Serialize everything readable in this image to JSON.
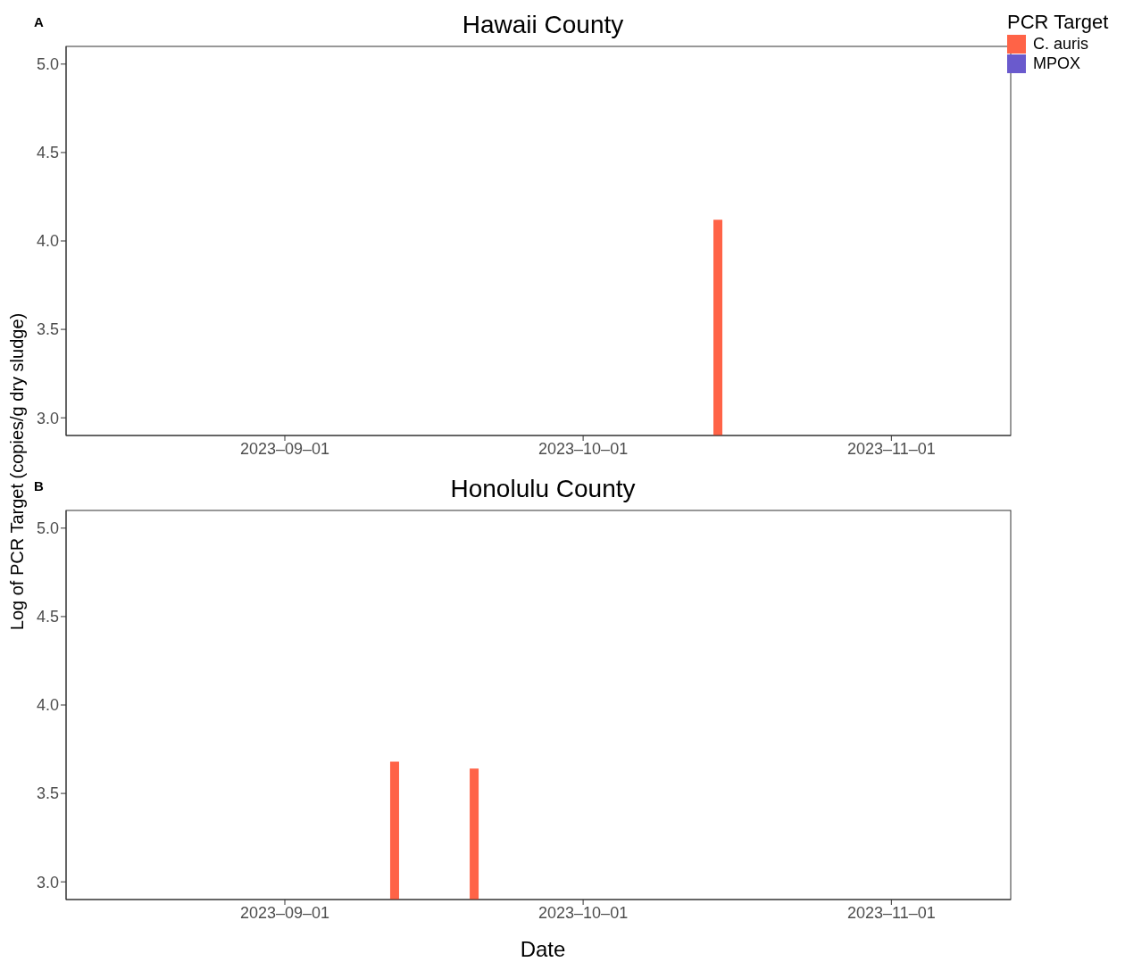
{
  "chart_data": [
    {
      "type": "bar",
      "title": "Hawaii County",
      "annotations": [
        "A"
      ],
      "ylabel": "Log of PCR Target (copies/g dry sludge)",
      "legend_title": "PCR Target",
      "legend": "top right",
      "grid": false,
      "x": [
        "2023-10-15"
      ],
      "series": [
        {
          "name": "C. auris",
          "color": "#ff6347",
          "values": [
            4.12
          ]
        },
        {
          "name": "MPOX",
          "color": "#6a5acd",
          "values": [
            null
          ]
        }
      ],
      "xlim": [
        "2023-08-10",
        "2023-11-13"
      ],
      "xticks": [
        {
          "value": "2023-09-01",
          "label": "2023–09–01"
        },
        {
          "value": "2023-10-01",
          "label": "2023–10–01"
        },
        {
          "value": "2023-11-01",
          "label": "2023–11–01"
        }
      ],
      "ylim": [
        2.9,
        5.1
      ],
      "yticks": [
        {
          "value": 3,
          "label": "3.0"
        },
        {
          "value": 3.5,
          "label": "3.5"
        },
        {
          "value": 4,
          "label": "4.0"
        },
        {
          "value": 4.5,
          "label": "4.5"
        },
        {
          "value": 5,
          "label": "5.0"
        }
      ]
    },
    {
      "type": "bar",
      "title": "Honolulu County",
      "annotations": [
        "B"
      ],
      "xlabel": "Date",
      "legend": false,
      "grid": false,
      "x": [
        "2023-09-12",
        "2023-09-20"
      ],
      "series": [
        {
          "color": "#ff6347",
          "values": [
            3.68,
            3.64
          ]
        }
      ],
      "xlim": [
        "2023-08-10",
        "2023-11-13"
      ],
      "xticks": [
        {
          "value": "2023-09-01",
          "label": "2023–09–01"
        },
        {
          "value": "2023-10-01",
          "label": "2023–10–01"
        },
        {
          "value": "2023-11-01",
          "label": "2023–11–01"
        }
      ],
      "ylim": [
        2.9,
        5.1
      ],
      "yticks": [
        {
          "value": 3,
          "label": "3.0"
        },
        {
          "value": 3.5,
          "label": "3.5"
        },
        {
          "value": 4,
          "label": "4.0"
        },
        {
          "value": 4.5,
          "label": "4.5"
        },
        {
          "value": 5,
          "label": "5.0"
        }
      ]
    }
  ]
}
